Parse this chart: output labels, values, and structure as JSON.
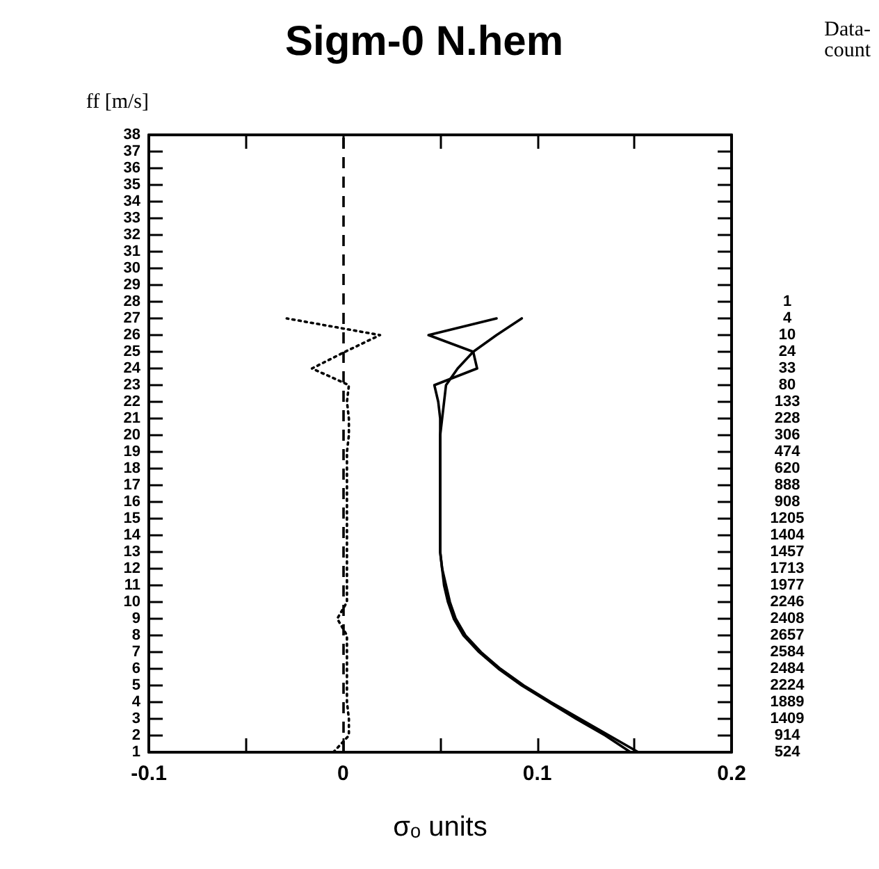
{
  "chart_data": {
    "type": "line",
    "title": "Sigm-0 N.hem",
    "xlabel": "σₒ units",
    "ylabel": "ff [m/s]",
    "xlim": [
      -0.1,
      0.2
    ],
    "xticks": [
      -0.1,
      {
        "value": -0.05,
        "label": null
      },
      0,
      {
        "value": 0.05,
        "label": null
      },
      0.1,
      {
        "value": 0.15,
        "label": null
      },
      0.2
    ],
    "ylim": [
      1,
      38
    ],
    "yticks": [
      1,
      2,
      3,
      4,
      5,
      6,
      7,
      8,
      9,
      10,
      11,
      12,
      13,
      14,
      15,
      16,
      17,
      18,
      19,
      20,
      21,
      22,
      23,
      24,
      25,
      26,
      27,
      28,
      29,
      30,
      31,
      32,
      33,
      34,
      35,
      36,
      37,
      38
    ],
    "annotations": [
      "Data-\ncount",
      "524",
      "914",
      "1409",
      "1889",
      "2224",
      "2484",
      "2584",
      "2657",
      "2408",
      "2246",
      "1977",
      "1713",
      "1457",
      "1404",
      "1205",
      "908",
      "888",
      "620",
      "474",
      "306",
      "228",
      "133",
      "80",
      "33",
      "24",
      "10",
      "4",
      "1"
    ],
    "ref_lines": [
      {
        "axis": "x",
        "value": 0,
        "color": "#000000",
        "line_style": "dashed"
      }
    ],
    "grid": false,
    "marker": "none",
    "series": [
      {
        "color": "#000000",
        "line_style": "solid",
        "x": [
          0.148,
          0.135,
          0.12,
          0.106,
          0.092,
          0.08,
          0.07,
          0.062,
          0.057,
          0.054,
          0.052,
          0.051,
          0.05,
          0.05,
          0.05,
          0.05,
          0.05,
          0.05,
          0.05,
          0.05,
          0.05,
          0.049,
          0.047,
          0.069,
          0.067,
          0.044,
          0.079
        ],
        "values": [
          1,
          2,
          3,
          4,
          5,
          6,
          7,
          8,
          9,
          10,
          11,
          12,
          13,
          14,
          15,
          16,
          17,
          18,
          19,
          20,
          21,
          22,
          23,
          24,
          25,
          26,
          27
        ]
      },
      {
        "color": "#000000",
        "line_style": "solid",
        "x": [
          0.152,
          0.137,
          0.122,
          0.107,
          0.093,
          0.081,
          0.071,
          0.063,
          0.058,
          0.055,
          0.053,
          0.051,
          0.05,
          0.05,
          0.05,
          0.05,
          0.05,
          0.05,
          0.05,
          0.05,
          0.051,
          0.052,
          0.053,
          0.059,
          0.067,
          0.079,
          0.092
        ],
        "values": [
          1,
          2,
          3,
          4,
          5,
          6,
          7,
          8,
          9,
          10,
          11,
          12,
          13,
          14,
          15,
          16,
          17,
          18,
          19,
          20,
          21,
          22,
          23,
          24,
          25,
          26,
          27
        ]
      },
      {
        "color": "#000000",
        "line_style": "dotted",
        "x": [
          -0.005,
          0.003,
          0.003,
          0.002,
          0.002,
          0.002,
          0.002,
          0.002,
          -0.003,
          0.002,
          0.002,
          0.002,
          0.002,
          0.002,
          0.002,
          0.002,
          0.002,
          0.002,
          0.002,
          0.003,
          0.003,
          0.002,
          0.003,
          -0.016,
          0.001,
          0.019,
          -0.029
        ],
        "values": [
          1,
          2,
          3,
          4,
          5,
          6,
          7,
          8,
          9,
          10,
          11,
          12,
          13,
          14,
          15,
          16,
          17,
          18,
          19,
          20,
          21,
          22,
          23,
          24,
          25,
          26,
          27
        ]
      }
    ]
  }
}
